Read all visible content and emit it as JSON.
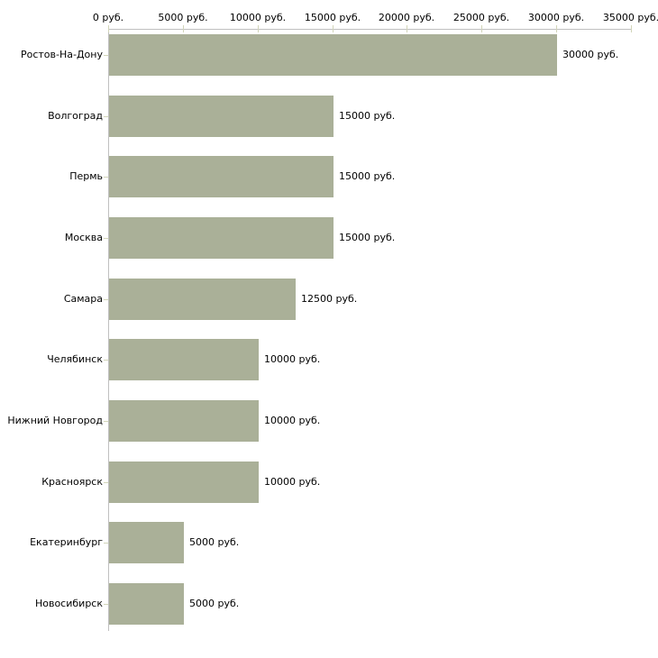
{
  "chart_data": {
    "type": "bar",
    "orientation": "horizontal",
    "title": "",
    "xlabel": "",
    "ylabel": "",
    "xlim": [
      0,
      35000
    ],
    "grid": false,
    "legend": null,
    "categories": [
      "Ростов-На-Дону",
      "Волгоград",
      "Пермь",
      "Москва",
      "Самара",
      "Челябинск",
      "Нижний Новгород",
      "Красноярск",
      "Екатеринбург",
      "Новосибирск"
    ],
    "values": [
      30000,
      15000,
      15000,
      15000,
      12500,
      10000,
      10000,
      10000,
      5000,
      5000
    ],
    "value_labels": [
      "30000 руб.",
      "15000 руб.",
      "15000 руб.",
      "15000 руб.",
      "12500 руб.",
      "10000 руб.",
      "10000 руб.",
      "10000 руб.",
      "5000 руб.",
      "5000 руб."
    ],
    "x_ticks": [
      {
        "value": 0,
        "label": "0 руб."
      },
      {
        "value": 5000,
        "label": "5000 руб."
      },
      {
        "value": 10000,
        "label": "10000 руб."
      },
      {
        "value": 15000,
        "label": "15000 руб."
      },
      {
        "value": 20000,
        "label": "20000 руб."
      },
      {
        "value": 25000,
        "label": "25000 руб."
      },
      {
        "value": 30000,
        "label": "30000 руб."
      },
      {
        "value": 35000,
        "label": "35000 руб."
      }
    ],
    "colors": {
      "bar": "#aab098",
      "axis_line": "#c0c0c0",
      "tick_mark": "#d2d5b9",
      "text": "#000000",
      "background": "#ffffff"
    }
  }
}
